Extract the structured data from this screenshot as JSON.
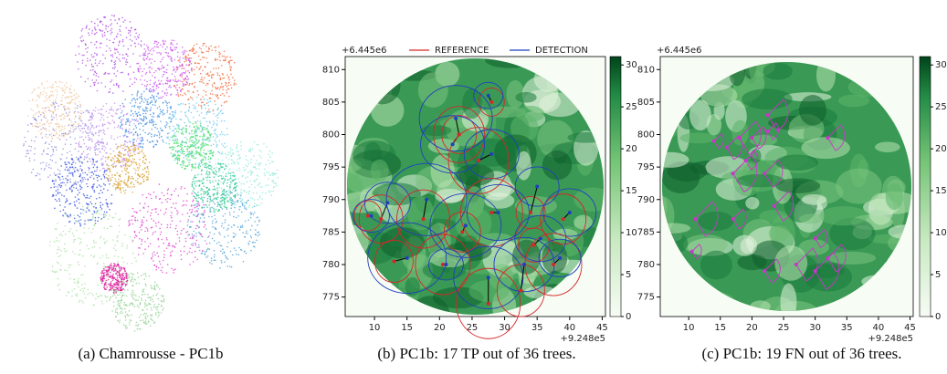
{
  "captions": [
    "(a) Chamrousse - PC1b",
    "(b) PC1b: 17 TP out of 36 trees.",
    "(c) PC1b: 19 FN out of 36 trees."
  ],
  "chart_data": [
    {
      "type": "heatmap",
      "x_offset": "+9.248e5",
      "y_offset": "+6.445e6",
      "xlim": [
        5.5,
        45.5
      ],
      "ylim": [
        772,
        812
      ],
      "xticks": [
        10,
        15,
        20,
        25,
        30,
        35,
        40,
        45
      ],
      "yticks": [
        775,
        780,
        785,
        790,
        795,
        800,
        805,
        810
      ],
      "colorbar": {
        "lim": [
          0,
          31
        ],
        "ticks": [
          0,
          5,
          10,
          15,
          20,
          25,
          30
        ]
      },
      "legend": "top",
      "series": [
        {
          "name": "REFERENCE",
          "color": "#d62728",
          "x": [
            28,
            23,
            23,
            26,
            11,
            9,
            17.5,
            23.5,
            28,
            39,
            34,
            20.5,
            13,
            27.5,
            32.5,
            34.5,
            37.5
          ],
          "values": [
            805,
            800,
            800,
            796,
            787,
            787.5,
            787,
            785,
            788,
            787,
            788,
            780,
            780.5,
            774,
            776,
            783,
            780
          ]
        },
        {
          "name": "DETECTION",
          "color": "#1f3fbf",
          "x": [
            27.5,
            22.5,
            22,
            28,
            12,
            9.5,
            18,
            24,
            29,
            40,
            35,
            21,
            15,
            27.5,
            33,
            35.5,
            38.5
          ],
          "values": [
            806,
            802.5,
            798.5,
            797,
            789.5,
            787.5,
            790,
            786,
            788,
            788,
            792,
            780,
            781,
            778,
            780,
            784,
            781
          ]
        }
      ]
    },
    {
      "type": "heatmap",
      "x_offset": "+9.248e5",
      "y_offset": "+6.445e6",
      "xlim": [
        5.5,
        45.5
      ],
      "ylim": [
        772,
        812
      ],
      "xticks": [
        10,
        15,
        20,
        25,
        30,
        35,
        40,
        45
      ],
      "yticks": [
        775,
        780,
        785,
        790,
        795,
        800,
        805,
        810
      ],
      "colorbar": {
        "lim": [
          0,
          31
        ],
        "ticks": [
          0,
          5,
          10,
          15,
          20,
          25,
          30
        ]
      },
      "color": "#cc33cc",
      "x": [
        14,
        16,
        18,
        19,
        22,
        17,
        20,
        22.5,
        22.5,
        32,
        11,
        17,
        23.5,
        10.5,
        22,
        27,
        30,
        32,
        30
      ],
      "values": [
        799,
        798,
        799.5,
        796,
        794,
        794,
        799.5,
        803,
        800.5,
        799.5,
        787,
        787,
        789,
        782,
        779,
        780,
        784,
        781,
        779
      ]
    }
  ]
}
